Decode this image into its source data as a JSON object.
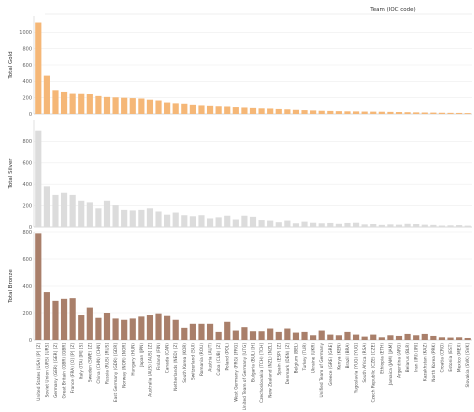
{
  "header": {
    "column_title": "Team (IOC code)"
  },
  "chart_data": {
    "type": "bar",
    "categories": [
      "United States (USA) [P] [Z]",
      "Soviet Union (URS) [URS]",
      "Germany (GER) [GER] [Z]",
      "Great Britain (GBR) [GBR]",
      "France (FRA) [O] [P] [Z]",
      "Italy (ITA) [M] [S]",
      "Sweden (SWE) [Z]",
      "China (CHN) [CHN]",
      "Russia (RUS) [RUS]",
      "East Germany (GDR) [GDR]",
      "Norway (NOR) [NOR]",
      "Hungary (HUN)",
      "Japan (JPN)",
      "Australia (AUS) [AUS] [Z]",
      "Finland (FIN)",
      "Canada (CAN)",
      "Netherlands (NED) [Z]",
      "South Korea (KOR)",
      "Switzerland (SUI)",
      "Romania (ROU)",
      "Austria (AUT)",
      "Cuba (CUB) [Z]",
      "Poland (POL)",
      "West Germany (FRG) [FRG]",
      "United Team of Germany [UTG]",
      "Bulgaria (BUL) [H]",
      "Czechoslovakia (TCH) [TCH]",
      "New Zealand (NZL) [NZL]",
      "Spain (ESP) [Z]",
      "Denmark (DEN) [Z]",
      "Belgium (BEL)",
      "Turkey (TUR)",
      "Ukraine (UKR)",
      "Unified Team of Germany",
      "Greece (GRE) [GRE]",
      "Kenya (KEN)",
      "Brazil (BRA)",
      "Yugoslavia (YUG) [YUG]",
      "South Africa (RSA)",
      "Czech Republic (CZE) [CZE]",
      "Ethiopia (ETH)",
      "Jamaica (JAM) [JAM]",
      "Argentina (ARG)",
      "Belarus (BLR)",
      "Iran (IRI) [IRI]",
      "Kazakhstan (KAZ)",
      "North Korea (PRK)",
      "Croatia (CRO)",
      "Estonia (EST)",
      "Mexico (MEX)",
      "Slovakia (SVK) [SVK]"
    ],
    "series": [
      {
        "name": "Total Gold",
        "ylabel": "Total Gold",
        "ylim": [
          0,
          1200
        ],
        "ticks": [
          0,
          200,
          400,
          600,
          800,
          1000
        ],
        "color": "#f5b777",
        "values": [
          1120,
          470,
          290,
          270,
          250,
          248,
          245,
          222,
          210,
          205,
          200,
          195,
          190,
          175,
          165,
          140,
          130,
          125,
          112,
          105,
          100,
          95,
          92,
          85,
          80,
          75,
          70,
          68,
          62,
          58,
          52,
          48,
          44,
          40,
          38,
          35,
          33,
          32,
          30,
          29,
          28,
          26,
          24,
          22,
          20,
          18,
          17,
          15,
          14,
          13,
          11
        ]
      },
      {
        "name": "Total Silver",
        "ylabel": "Total Silver",
        "ylim": [
          0,
          1000
        ],
        "ticks": [
          0,
          200,
          400,
          600,
          800
        ],
        "color": "#dcdcdc",
        "values": [
          900,
          380,
          300,
          320,
          300,
          245,
          230,
          175,
          245,
          205,
          160,
          155,
          160,
          175,
          145,
          115,
          135,
          110,
          100,
          110,
          80,
          90,
          105,
          70,
          105,
          95,
          65,
          60,
          45,
          60,
          35,
          50,
          40,
          35,
          38,
          30,
          38,
          40,
          25,
          28,
          20,
          25,
          22,
          30,
          28,
          22,
          20,
          14,
          16,
          18,
          13
        ]
      },
      {
        "name": "Total Bronze",
        "ylabel": "Total Bronze",
        "ylim": [
          0,
          800
        ],
        "ticks": [
          0,
          200,
          400,
          600,
          800
        ],
        "color": "#a97f6a",
        "values": [
          790,
          355,
          290,
          305,
          310,
          185,
          240,
          165,
          200,
          160,
          150,
          160,
          175,
          185,
          195,
          180,
          150,
          90,
          120,
          120,
          120,
          60,
          135,
          70,
          95,
          65,
          65,
          85,
          60,
          85,
          55,
          60,
          35,
          70,
          40,
          35,
          60,
          40,
          25,
          40,
          20,
          35,
          30,
          45,
          35,
          45,
          30,
          20,
          18,
          20,
          15
        ]
      }
    ]
  }
}
